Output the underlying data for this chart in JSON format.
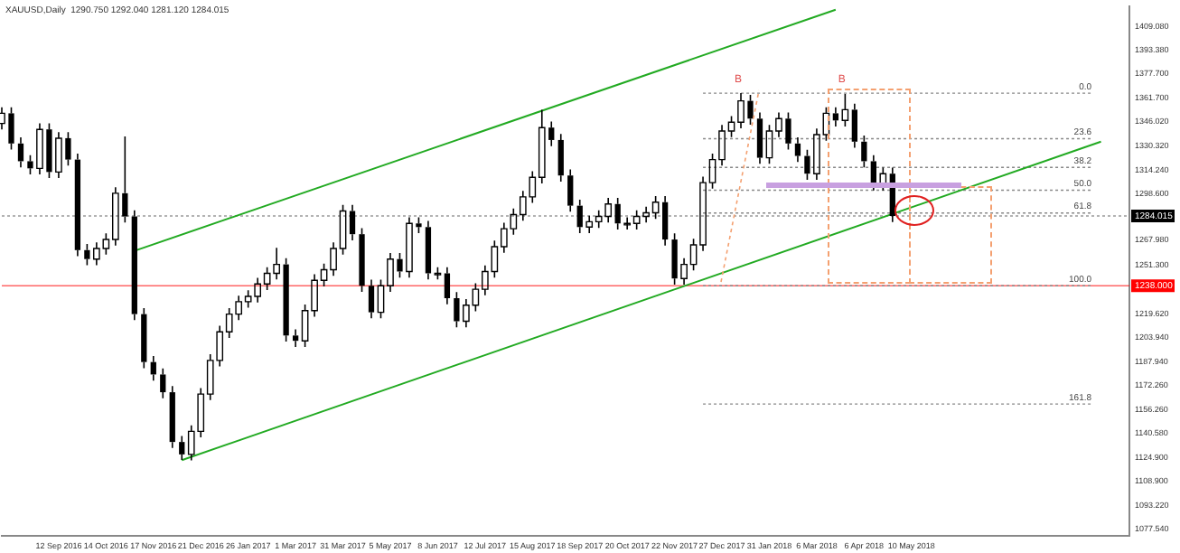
{
  "chart_data": {
    "type": "candlestick",
    "title": "XAUUSD,Daily  1290.750 1292.040 1281.120 1284.015",
    "categories": [
      null,
      null,
      null,
      null,
      null,
      null,
      "12 Sep 2016",
      null,
      null,
      null,
      null,
      "14 Oct 2016",
      null,
      null,
      null,
      null,
      "17 Nov 2016",
      null,
      null,
      null,
      null,
      "21 Dec 2016",
      null,
      null,
      null,
      null,
      "26 Jan 2017",
      null,
      null,
      null,
      null,
      "1 Mar 2017",
      null,
      null,
      null,
      null,
      "31 Mar 2017",
      null,
      null,
      null,
      null,
      "5 May 2017",
      null,
      null,
      null,
      null,
      "8 Jun 2017",
      null,
      null,
      null,
      null,
      "12 Jul 2017",
      null,
      null,
      null,
      null,
      "15 Aug 2017",
      null,
      null,
      null,
      null,
      "18 Sep 2017",
      null,
      null,
      null,
      null,
      "20 Oct 2017",
      null,
      null,
      null,
      null,
      "22 Nov 2017",
      null,
      null,
      null,
      null,
      "27 Dec 2017",
      null,
      null,
      null,
      null,
      "31 Jan 2018",
      null,
      null,
      null,
      null,
      "6 Mar 2018",
      null,
      null,
      null,
      null,
      "6 Apr 2018",
      null,
      null,
      null,
      null,
      "10 May 2018",
      null,
      null,
      null,
      null,
      null,
      null,
      null,
      null,
      null,
      null,
      null,
      null,
      null,
      null,
      null,
      null,
      null,
      null,
      null,
      null,
      null,
      null,
      null
    ],
    "series": [
      {
        "color": "#000000",
        "ohlc": [
          [
            1345.0,
            1355.7,
            1341.0,
            1351.7
          ],
          [
            1351.7,
            1355.7,
            1327.8,
            1331.8
          ],
          [
            1331.8,
            1335.8,
            1316.1,
            1320.1
          ],
          [
            1320.1,
            1324.1,
            1311.4,
            1315.4
          ],
          [
            1315.4,
            1345.1,
            1311.4,
            1341.1
          ],
          [
            1341.1,
            1345.1,
            1309.0,
            1313.0
          ],
          [
            1313.0,
            1339.3,
            1309.0,
            1335.3
          ],
          [
            1335.3,
            1339.3,
            1317.2,
            1321.2
          ],
          [
            1321.2,
            1325.2,
            1257.5,
            1261.5
          ],
          [
            1261.5,
            1265.5,
            1251.6,
            1255.6
          ],
          [
            1255.6,
            1266.6,
            1251.6,
            1262.6
          ],
          [
            1262.6,
            1272.5,
            1258.6,
            1268.5
          ],
          [
            1268.5,
            1303.0,
            1264.5,
            1299.0
          ],
          [
            1299.0,
            1336.5,
            1279.7,
            1283.7
          ],
          [
            1283.7,
            1287.7,
            1215.3,
            1219.3
          ],
          [
            1219.3,
            1223.3,
            1183.7,
            1187.7
          ],
          [
            1187.7,
            1191.7,
            1175.5,
            1179.5
          ],
          [
            1179.5,
            1183.5,
            1163.8,
            1167.8
          ],
          [
            1167.8,
            1171.8,
            1131.0,
            1135.0
          ],
          [
            1135.0,
            1139.0,
            1123.2,
            1126.8
          ],
          [
            1126.8,
            1146.0,
            1122.8,
            1142.0
          ],
          [
            1142.0,
            1170.6,
            1138.0,
            1166.6
          ],
          [
            1166.6,
            1192.8,
            1162.6,
            1188.8
          ],
          [
            1188.8,
            1211.6,
            1184.8,
            1207.6
          ],
          [
            1207.6,
            1223.3,
            1203.6,
            1219.3
          ],
          [
            1219.3,
            1231.5,
            1215.3,
            1227.5
          ],
          [
            1227.5,
            1235.0,
            1223.5,
            1231.0
          ],
          [
            1231.0,
            1243.2,
            1227.0,
            1239.2
          ],
          [
            1239.2,
            1250.2,
            1235.2,
            1246.2
          ],
          [
            1246.2,
            1263.0,
            1242.2,
            1252.1
          ],
          [
            1252.1,
            1256.1,
            1201.2,
            1205.2
          ],
          [
            1205.2,
            1209.2,
            1197.7,
            1201.7
          ],
          [
            1201.7,
            1225.6,
            1197.7,
            1221.6
          ],
          [
            1221.6,
            1245.6,
            1217.6,
            1241.6
          ],
          [
            1241.6,
            1252.6,
            1237.6,
            1248.6
          ],
          [
            1248.6,
            1266.6,
            1244.6,
            1262.6
          ],
          [
            1262.6,
            1291.3,
            1258.6,
            1287.3
          ],
          [
            1287.3,
            1291.3,
            1268.0,
            1272.0
          ],
          [
            1272.0,
            1276.0,
            1234.0,
            1238.0
          ],
          [
            1238.0,
            1242.0,
            1216.5,
            1220.5
          ],
          [
            1220.5,
            1242.0,
            1216.5,
            1238.0
          ],
          [
            1238.0,
            1259.6,
            1234.0,
            1255.6
          ],
          [
            1255.6,
            1259.6,
            1243.4,
            1247.4
          ],
          [
            1247.4,
            1283.1,
            1243.4,
            1279.1
          ],
          [
            1279.1,
            1283.1,
            1272.7,
            1276.7
          ],
          [
            1276.7,
            1280.7,
            1242.2,
            1246.2
          ],
          [
            1246.2,
            1250.2,
            1242.2,
            1246.2
          ],
          [
            1246.2,
            1250.2,
            1225.8,
            1229.8
          ],
          [
            1229.8,
            1233.8,
            1210.6,
            1214.6
          ],
          [
            1214.6,
            1229.2,
            1210.6,
            1225.2
          ],
          [
            1225.2,
            1239.7,
            1221.2,
            1235.7
          ],
          [
            1235.7,
            1251.4,
            1231.7,
            1247.4
          ],
          [
            1247.4,
            1267.8,
            1243.4,
            1263.8
          ],
          [
            1263.8,
            1279.6,
            1259.8,
            1275.6
          ],
          [
            1275.6,
            1288.9,
            1271.6,
            1284.9
          ],
          [
            1284.9,
            1300.6,
            1280.9,
            1296.6
          ],
          [
            1296.6,
            1313.5,
            1292.6,
            1309.5
          ],
          [
            1309.5,
            1354.0,
            1305.5,
            1342.3
          ],
          [
            1342.3,
            1346.3,
            1330.1,
            1334.1
          ],
          [
            1334.1,
            1338.1,
            1306.7,
            1310.7
          ],
          [
            1310.7,
            1314.7,
            1286.8,
            1290.8
          ],
          [
            1290.8,
            1294.8,
            1272.7,
            1276.7
          ],
          [
            1276.7,
            1284.2,
            1272.7,
            1280.2
          ],
          [
            1280.2,
            1287.7,
            1276.2,
            1283.7
          ],
          [
            1283.7,
            1295.9,
            1279.7,
            1291.9
          ],
          [
            1291.9,
            1295.9,
            1275.1,
            1279.1
          ],
          [
            1279.1,
            1283.1,
            1275.1,
            1279.1
          ],
          [
            1279.1,
            1287.7,
            1275.1,
            1283.7
          ],
          [
            1283.7,
            1290.1,
            1279.7,
            1286.1
          ],
          [
            1286.1,
            1297.1,
            1282.1,
            1293.1
          ],
          [
            1293.1,
            1297.1,
            1264.5,
            1268.5
          ],
          [
            1268.5,
            1272.5,
            1238.8,
            1242.8
          ],
          [
            1242.8,
            1256.1,
            1238.8,
            1252.1
          ],
          [
            1252.1,
            1269.0,
            1248.1,
            1265.0
          ],
          [
            1265.0,
            1310.0,
            1261.0,
            1306.0
          ],
          [
            1306.0,
            1325.2,
            1302.0,
            1321.2
          ],
          [
            1321.2,
            1344.0,
            1317.2,
            1340.0
          ],
          [
            1340.0,
            1349.8,
            1336.0,
            1345.8
          ],
          [
            1345.8,
            1365.0,
            1341.8,
            1359.9
          ],
          [
            1359.9,
            1363.9,
            1344.2,
            1348.2
          ],
          [
            1348.2,
            1352.2,
            1318.4,
            1322.4
          ],
          [
            1322.4,
            1344.0,
            1318.4,
            1340.0
          ],
          [
            1340.0,
            1352.2,
            1336.0,
            1348.2
          ],
          [
            1348.2,
            1352.2,
            1327.8,
            1331.8
          ],
          [
            1331.8,
            1335.8,
            1319.6,
            1323.6
          ],
          [
            1323.6,
            1327.6,
            1307.9,
            1311.9
          ],
          [
            1311.9,
            1341.6,
            1307.9,
            1337.6
          ],
          [
            1337.6,
            1355.7,
            1333.6,
            1351.7
          ],
          [
            1351.7,
            1355.7,
            1343.0,
            1347.0
          ],
          [
            1347.0,
            1364.5,
            1343.0,
            1354.1
          ],
          [
            1354.1,
            1358.1,
            1329.0,
            1333.0
          ],
          [
            1333.0,
            1337.0,
            1316.1,
            1320.1
          ],
          [
            1320.1,
            1324.1,
            1300.8,
            1304.8
          ],
          [
            1304.8,
            1315.9,
            1300.8,
            1311.9
          ],
          [
            1311.9,
            1315.9,
            1280.0,
            1284.0
          ],
          null,
          null,
          null,
          null,
          null,
          null,
          null,
          null,
          null,
          null,
          null,
          null,
          null,
          null,
          null,
          null,
          null,
          null,
          null,
          null,
          null,
          null,
          null,
          null,
          null
        ]
      },
      {
        "type": "line",
        "color": "#22aa22",
        "line_style": "solid",
        "values": [
          null,
          null,
          null,
          null,
          null,
          null,
          null,
          null,
          null,
          null,
          null,
          null,
          null,
          null,
          null,
          null,
          null,
          null,
          null,
          1123,
          null,
          null,
          null,
          null,
          null,
          null,
          null,
          null,
          null,
          null,
          null,
          null,
          null,
          null,
          null,
          null,
          null,
          null,
          null,
          null,
          null,
          null,
          null,
          null,
          null,
          null,
          null,
          null,
          null,
          null,
          null,
          null,
          null,
          null,
          null,
          null,
          null,
          null,
          null,
          null,
          null,
          null,
          null,
          null,
          null,
          null,
          null,
          null,
          null,
          null,
          null,
          null,
          null,
          null,
          null,
          null,
          null,
          null,
          null,
          null,
          null,
          null,
          null,
          null,
          null,
          null,
          null,
          null,
          null,
          null,
          null,
          null,
          null,
          null,
          null,
          null,
          null,
          null,
          null,
          null,
          null,
          null,
          null,
          null,
          null,
          null,
          null,
          null,
          null,
          null,
          null,
          null,
          null,
          null,
          null,
          null,
          1333,
          null,
          null,
          null
        ]
      },
      {
        "type": "line",
        "color": "#22aa22",
        "line_style": "solid",
        "values": [
          null,
          null,
          null,
          null,
          null,
          null,
          null,
          null,
          null,
          null,
          null,
          null,
          null,
          null,
          1261,
          null,
          null,
          null,
          null,
          null,
          null,
          null,
          null,
          null,
          null,
          null,
          null,
          null,
          null,
          null,
          null,
          null,
          null,
          null,
          null,
          null,
          null,
          null,
          null,
          null,
          null,
          null,
          null,
          null,
          null,
          null,
          null,
          null,
          null,
          null,
          null,
          null,
          null,
          null,
          null,
          null,
          null,
          null,
          null,
          null,
          null,
          null,
          null,
          null,
          null,
          null,
          null,
          null,
          null,
          null,
          null,
          null,
          null,
          null,
          null,
          null,
          null,
          null,
          null,
          null,
          null,
          null,
          null,
          null,
          null,
          null,
          null,
          null,
          1420,
          null,
          null,
          null,
          null,
          null,
          null,
          null,
          null,
          null,
          null,
          null,
          null,
          null,
          null,
          null,
          null,
          null,
          null,
          null,
          null,
          null,
          null,
          null,
          null,
          null,
          null,
          null,
          null,
          null,
          null,
          null
        ]
      },
      {
        "type": "line",
        "name": "0.0",
        "color": "#888888",
        "line_style": "dotted",
        "values": [
          null,
          null,
          null,
          null,
          null,
          null,
          null,
          null,
          null,
          null,
          null,
          null,
          null,
          null,
          null,
          null,
          null,
          null,
          null,
          null,
          null,
          null,
          null,
          null,
          null,
          null,
          null,
          null,
          null,
          null,
          null,
          null,
          null,
          null,
          null,
          null,
          null,
          null,
          null,
          null,
          null,
          null,
          null,
          null,
          null,
          null,
          null,
          null,
          null,
          null,
          null,
          null,
          null,
          null,
          null,
          null,
          null,
          null,
          null,
          null,
          null,
          null,
          null,
          null,
          null,
          null,
          null,
          null,
          null,
          null,
          null,
          null,
          null,
          null,
          1365,
          null,
          null,
          null,
          null,
          null,
          null,
          null,
          null,
          null,
          null,
          null,
          null,
          null,
          null,
          null,
          null,
          null,
          null,
          null,
          null,
          null,
          null,
          null,
          null,
          null,
          null,
          null,
          null,
          null,
          null,
          null,
          null,
          null,
          null,
          null,
          null,
          null,
          null,
          null,
          null,
          1365,
          null,
          null,
          null,
          null
        ]
      },
      {
        "type": "line",
        "name": "23.6",
        "color": "#888888",
        "line_style": "dotted",
        "values": [
          null,
          null,
          null,
          null,
          null,
          null,
          null,
          null,
          null,
          null,
          null,
          null,
          null,
          null,
          null,
          null,
          null,
          null,
          null,
          null,
          null,
          null,
          null,
          null,
          null,
          null,
          null,
          null,
          null,
          null,
          null,
          null,
          null,
          null,
          null,
          null,
          null,
          null,
          null,
          null,
          null,
          null,
          null,
          null,
          null,
          null,
          null,
          null,
          null,
          null,
          null,
          null,
          null,
          null,
          null,
          null,
          null,
          null,
          null,
          null,
          null,
          null,
          null,
          null,
          null,
          null,
          null,
          null,
          null,
          null,
          null,
          null,
          null,
          null,
          1335,
          null,
          null,
          null,
          null,
          null,
          null,
          null,
          null,
          null,
          null,
          null,
          null,
          null,
          null,
          null,
          null,
          null,
          null,
          null,
          null,
          null,
          null,
          null,
          null,
          null,
          null,
          null,
          null,
          null,
          null,
          null,
          null,
          null,
          null,
          null,
          null,
          null,
          null,
          null,
          null,
          1335,
          null,
          null,
          null,
          null
        ]
      },
      {
        "type": "line",
        "name": "38.2",
        "color": "#888888",
        "line_style": "dotted",
        "values": [
          null,
          null,
          null,
          null,
          null,
          null,
          null,
          null,
          null,
          null,
          null,
          null,
          null,
          null,
          null,
          null,
          null,
          null,
          null,
          null,
          null,
          null,
          null,
          null,
          null,
          null,
          null,
          null,
          null,
          null,
          null,
          null,
          null,
          null,
          null,
          null,
          null,
          null,
          null,
          null,
          null,
          null,
          null,
          null,
          null,
          null,
          null,
          null,
          null,
          null,
          null,
          null,
          null,
          null,
          null,
          null,
          null,
          null,
          null,
          null,
          null,
          null,
          null,
          null,
          null,
          null,
          null,
          null,
          null,
          null,
          null,
          null,
          null,
          null,
          1316,
          null,
          null,
          null,
          null,
          null,
          null,
          null,
          null,
          null,
          null,
          null,
          null,
          null,
          null,
          null,
          null,
          null,
          null,
          null,
          null,
          null,
          null,
          null,
          null,
          null,
          null,
          null,
          null,
          null,
          null,
          null,
          null,
          null,
          null,
          null,
          null,
          null,
          null,
          null,
          null,
          1316,
          null,
          null,
          null,
          null
        ]
      },
      {
        "type": "line",
        "name": "50.0",
        "color": "#888888",
        "line_style": "dotted",
        "values": [
          null,
          null,
          null,
          null,
          null,
          null,
          null,
          null,
          null,
          null,
          null,
          null,
          null,
          null,
          null,
          null,
          null,
          null,
          null,
          null,
          null,
          null,
          null,
          null,
          null,
          null,
          null,
          null,
          null,
          null,
          null,
          null,
          null,
          null,
          null,
          null,
          null,
          null,
          null,
          null,
          null,
          null,
          null,
          null,
          null,
          null,
          null,
          null,
          null,
          null,
          null,
          null,
          null,
          null,
          null,
          null,
          null,
          null,
          null,
          null,
          null,
          null,
          null,
          null,
          null,
          null,
          null,
          null,
          null,
          null,
          null,
          null,
          null,
          null,
          1301,
          null,
          null,
          null,
          null,
          null,
          null,
          null,
          null,
          null,
          null,
          null,
          null,
          null,
          null,
          null,
          null,
          null,
          null,
          null,
          null,
          null,
          null,
          null,
          null,
          null,
          null,
          null,
          null,
          null,
          null,
          null,
          null,
          null,
          null,
          null,
          null,
          null,
          null,
          null,
          null,
          1301,
          null,
          null,
          null,
          null
        ]
      },
      {
        "type": "line",
        "name": "61.8",
        "color": "#888888",
        "line_style": "dotted",
        "values": [
          null,
          null,
          null,
          null,
          null,
          null,
          null,
          null,
          null,
          null,
          null,
          null,
          null,
          null,
          null,
          null,
          null,
          null,
          null,
          null,
          null,
          null,
          null,
          null,
          null,
          null,
          null,
          null,
          null,
          null,
          null,
          null,
          null,
          null,
          null,
          null,
          null,
          null,
          null,
          null,
          null,
          null,
          null,
          null,
          null,
          null,
          null,
          null,
          null,
          null,
          null,
          null,
          null,
          null,
          null,
          null,
          null,
          null,
          null,
          null,
          null,
          null,
          null,
          null,
          null,
          null,
          null,
          null,
          null,
          null,
          null,
          null,
          null,
          null,
          1286,
          null,
          null,
          null,
          null,
          null,
          null,
          null,
          null,
          null,
          null,
          null,
          null,
          null,
          null,
          null,
          null,
          null,
          null,
          null,
          null,
          null,
          null,
          null,
          null,
          null,
          null,
          null,
          null,
          null,
          null,
          null,
          null,
          null,
          null,
          null,
          null,
          null,
          null,
          null,
          null,
          1286,
          null,
          null,
          null,
          null
        ]
      },
      {
        "type": "line",
        "name": "100.0",
        "color": "#888888",
        "line_style": "dotted",
        "values": [
          null,
          null,
          null,
          null,
          null,
          null,
          null,
          null,
          null,
          null,
          null,
          null,
          null,
          null,
          null,
          null,
          null,
          null,
          null,
          null,
          null,
          null,
          null,
          null,
          null,
          null,
          null,
          null,
          null,
          null,
          null,
          null,
          null,
          null,
          null,
          null,
          null,
          null,
          null,
          null,
          null,
          null,
          null,
          null,
          null,
          null,
          null,
          null,
          null,
          null,
          null,
          null,
          null,
          null,
          null,
          null,
          null,
          null,
          null,
          null,
          null,
          null,
          null,
          null,
          null,
          null,
          null,
          null,
          null,
          null,
          null,
          null,
          null,
          null,
          1238,
          null,
          null,
          null,
          null,
          null,
          null,
          null,
          null,
          null,
          null,
          null,
          null,
          null,
          null,
          null,
          null,
          null,
          null,
          null,
          null,
          null,
          null,
          null,
          null,
          null,
          null,
          null,
          null,
          null,
          null,
          null,
          null,
          null,
          null,
          null,
          null,
          null,
          null,
          null,
          null,
          1238,
          null,
          null,
          null,
          null
        ]
      },
      {
        "type": "line",
        "name": "161.8",
        "color": "#888888",
        "line_style": "dotted",
        "values": [
          null,
          null,
          null,
          null,
          null,
          null,
          null,
          null,
          null,
          null,
          null,
          null,
          null,
          null,
          null,
          null,
          null,
          null,
          null,
          null,
          null,
          null,
          null,
          null,
          null,
          null,
          null,
          null,
          null,
          null,
          null,
          null,
          null,
          null,
          null,
          null,
          null,
          null,
          null,
          null,
          null,
          null,
          null,
          null,
          null,
          null,
          null,
          null,
          null,
          null,
          null,
          null,
          null,
          null,
          null,
          null,
          null,
          null,
          null,
          null,
          null,
          null,
          null,
          null,
          null,
          null,
          null,
          null,
          null,
          null,
          null,
          null,
          null,
          null,
          1160,
          null,
          null,
          null,
          null,
          null,
          null,
          null,
          null,
          null,
          null,
          null,
          null,
          null,
          null,
          null,
          null,
          null,
          null,
          null,
          null,
          null,
          null,
          null,
          null,
          null,
          null,
          null,
          null,
          null,
          null,
          null,
          null,
          null,
          null,
          null,
          null,
          null,
          null,
          null,
          null,
          1160,
          null,
          null,
          null,
          null
        ]
      }
    ],
    "ylim": [
      1073,
      1422
    ],
    "yticks": [
      {
        "value": 1409.08,
        "label": "1409.080"
      },
      {
        "value": 1393.38,
        "label": "1393.380"
      },
      {
        "value": 1377.7,
        "label": "1377.700"
      },
      {
        "value": 1361.7,
        "label": "1361.700"
      },
      {
        "value": 1346.02,
        "label": "1346.020"
      },
      {
        "value": 1330.32,
        "label": "1330.320"
      },
      {
        "value": 1314.24,
        "label": "1314.240"
      },
      {
        "value": 1298.6,
        "label": "1298.600"
      },
      {
        "value": 1267.98,
        "label": "1267.980"
      },
      {
        "value": 1251.3,
        "label": "1251.300"
      },
      {
        "value": 1219.62,
        "label": "1219.620"
      },
      {
        "value": 1203.94,
        "label": "1203.940"
      },
      {
        "value": 1187.94,
        "label": "1187.940"
      },
      {
        "value": 1172.26,
        "label": "1172.260"
      },
      {
        "value": 1156.26,
        "label": "1156.260"
      },
      {
        "value": 1140.58,
        "label": "1140.580"
      },
      {
        "value": 1124.9,
        "label": "1124.900"
      },
      {
        "value": 1108.9,
        "label": "1108.900"
      },
      {
        "value": 1093.22,
        "label": "1093.220"
      },
      {
        "value": 1077.54,
        "label": "1077.540"
      }
    ],
    "ref_lines": [
      {
        "axis": "y",
        "value": 1284.015,
        "label": "1284.015",
        "color": "#000000",
        "line_style": "dotted"
      },
      {
        "axis": "y",
        "value": 1238,
        "label": "1238.000",
        "color": "#ff0000",
        "line_style": "solid"
      }
    ],
    "annotations": [
      "B",
      "B"
    ],
    "grid": false,
    "legend": false
  }
}
